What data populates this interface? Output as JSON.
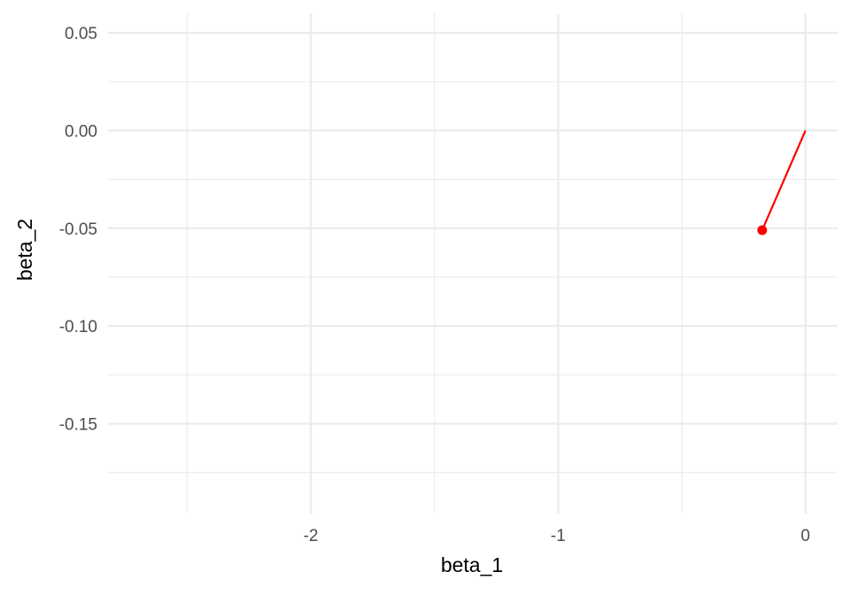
{
  "chart_data": {
    "type": "line",
    "title": "",
    "xlabel": "beta_1",
    "ylabel": "beta_2",
    "xlim": [
      -2.82,
      0.13
    ],
    "ylim": [
      -0.196,
      0.06
    ],
    "x_ticks": [
      -2,
      -1,
      0
    ],
    "x_tick_labels": [
      "-2",
      "-1",
      "0"
    ],
    "x_minor_ticks": [
      -2.5,
      -1.5,
      -0.5
    ],
    "y_ticks": [
      0.05,
      0.0,
      -0.05,
      -0.1,
      -0.15
    ],
    "y_tick_labels": [
      "0.05",
      "0.00",
      "-0.05",
      "-0.10",
      "-0.15"
    ],
    "y_minor_ticks": [
      0.025,
      -0.025,
      -0.075,
      -0.125,
      -0.175
    ],
    "grid": true,
    "series": [
      {
        "x": [
          0,
          -0.175
        ],
        "y": [
          0,
          -0.051
        ],
        "color": "#ff0000",
        "end_marker": true
      }
    ]
  }
}
